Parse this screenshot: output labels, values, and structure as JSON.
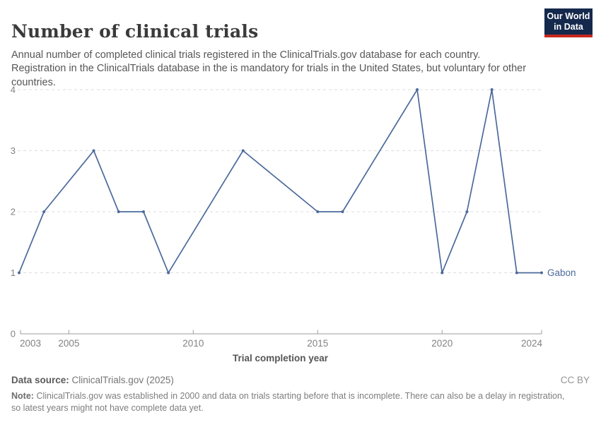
{
  "header": {
    "title": "Number of clinical trials",
    "subtitle": "Annual number of completed clinical trials registered in the ClinicalTrials.gov database for each country. Registration in the ClinicalTrials database in the is mandatory for trials in the United States, but voluntary for other countries.",
    "logo": {
      "line1": "Our World",
      "line2": "in Data",
      "bg_color": "#15294d",
      "bar_color": "#c7281e"
    }
  },
  "chart_data": {
    "type": "line",
    "title": "Number of clinical trials",
    "xlabel": "Trial completion year",
    "ylabel": "",
    "xlim": [
      2003,
      2024
    ],
    "ylim": [
      0,
      4
    ],
    "x_ticks": [
      2003,
      2005,
      2010,
      2015,
      2020,
      2024
    ],
    "y_ticks": [
      0,
      1,
      2,
      3,
      4
    ],
    "grid": "horizontal-dashed",
    "legend_position": "end-of-line-label",
    "series": [
      {
        "name": "Gabon",
        "color": "#4c6a9c",
        "x": [
          2003,
          2004,
          2006,
          2007,
          2008,
          2009,
          2012,
          2015,
          2016,
          2019,
          2020,
          2021,
          2022,
          2023,
          2024
        ],
        "y": [
          1,
          2,
          3,
          2,
          2,
          1,
          3,
          2,
          2,
          4,
          1,
          2,
          4,
          1,
          1
        ]
      }
    ]
  },
  "colors": {
    "gridline": "#dcdcdc",
    "axis": "#9e9e9e",
    "tick_label": "#828282",
    "series_blue": "#4c6a9c"
  },
  "footer": {
    "source_label": "Data source:",
    "source_value": "ClinicalTrials.gov (2025)",
    "license": "CC BY",
    "note_label": "Note:",
    "note_text": "ClinicalTrials.gov was established in 2000 and data on trials starting before that is incomplete. There can also be a delay in registration, so latest years might not have complete data yet."
  }
}
